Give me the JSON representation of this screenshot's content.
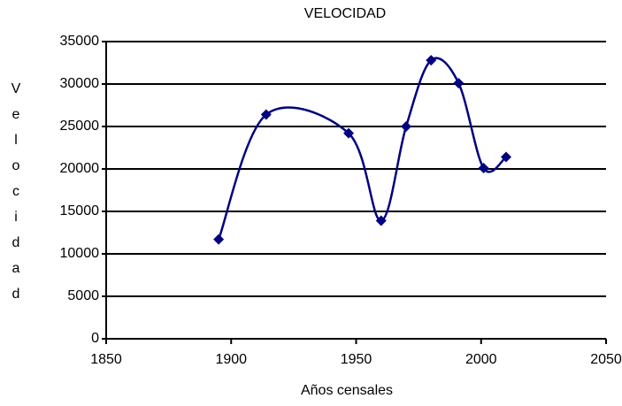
{
  "chart_data": {
    "type": "scatter",
    "title": "VELOCIDAD",
    "xlabel": "Años censales",
    "ylabel": "Velocidad",
    "series": [
      {
        "name": "Velocidad",
        "color": "#000080",
        "x": [
          1895,
          1914,
          1947,
          1960,
          1970,
          1980,
          1991,
          2001,
          2010
        ],
        "values": [
          11700,
          26400,
          24200,
          13900,
          25000,
          32800,
          30100,
          20100,
          21400
        ]
      }
    ],
    "xlim": [
      1850,
      2050
    ],
    "xticks": [
      1850,
      1900,
      1950,
      2000,
      2050
    ],
    "ylim": [
      0,
      35000
    ],
    "yticks": [
      0,
      5000,
      10000,
      15000,
      20000,
      25000,
      30000,
      35000
    ],
    "grid": true,
    "smooth": true
  }
}
